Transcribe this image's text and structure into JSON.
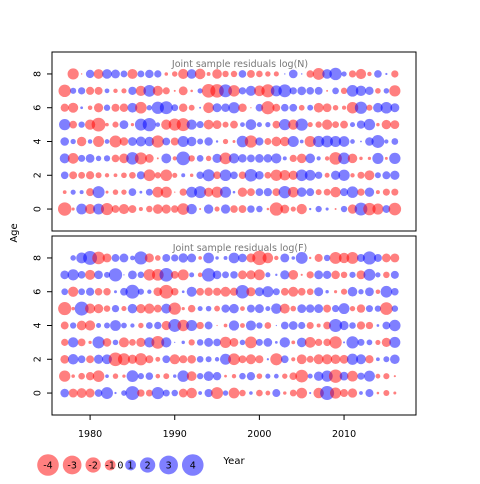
{
  "chart_data": {
    "type": "scatter",
    "xlabel": "Year",
    "ylabel": "Age",
    "x_range": [
      1975.5,
      2018.5
    ],
    "x_ticks": [
      1980,
      1990,
      2000,
      2010
    ],
    "year_range": [
      1977,
      2016
    ],
    "ages": [
      0,
      1,
      2,
      3,
      4,
      5,
      6,
      7,
      8
    ],
    "colors": {
      "positive": "#0000ff",
      "negative": "#ff0000",
      "fill_alpha": 0.5
    },
    "panels": [
      {
        "title": "Joint sample residuals log(N)",
        "y_range": [
          -1.3,
          9.3
        ],
        "y_ticks": [
          0,
          2,
          4,
          6,
          8
        ]
      },
      {
        "title": "Joint sample residuals log(F)",
        "y_range": [
          -1.3,
          9.3
        ],
        "y_ticks": [
          0,
          2,
          4,
          6,
          8
        ]
      }
    ],
    "legend": {
      "placement": "bottom-left",
      "values": [
        -4,
        -3,
        -2,
        -1,
        0,
        1,
        2,
        3,
        4
      ],
      "labels": [
        "-4",
        "-3",
        "-2",
        "-1",
        "0",
        "1",
        "2",
        "3",
        "4"
      ]
    }
  }
}
